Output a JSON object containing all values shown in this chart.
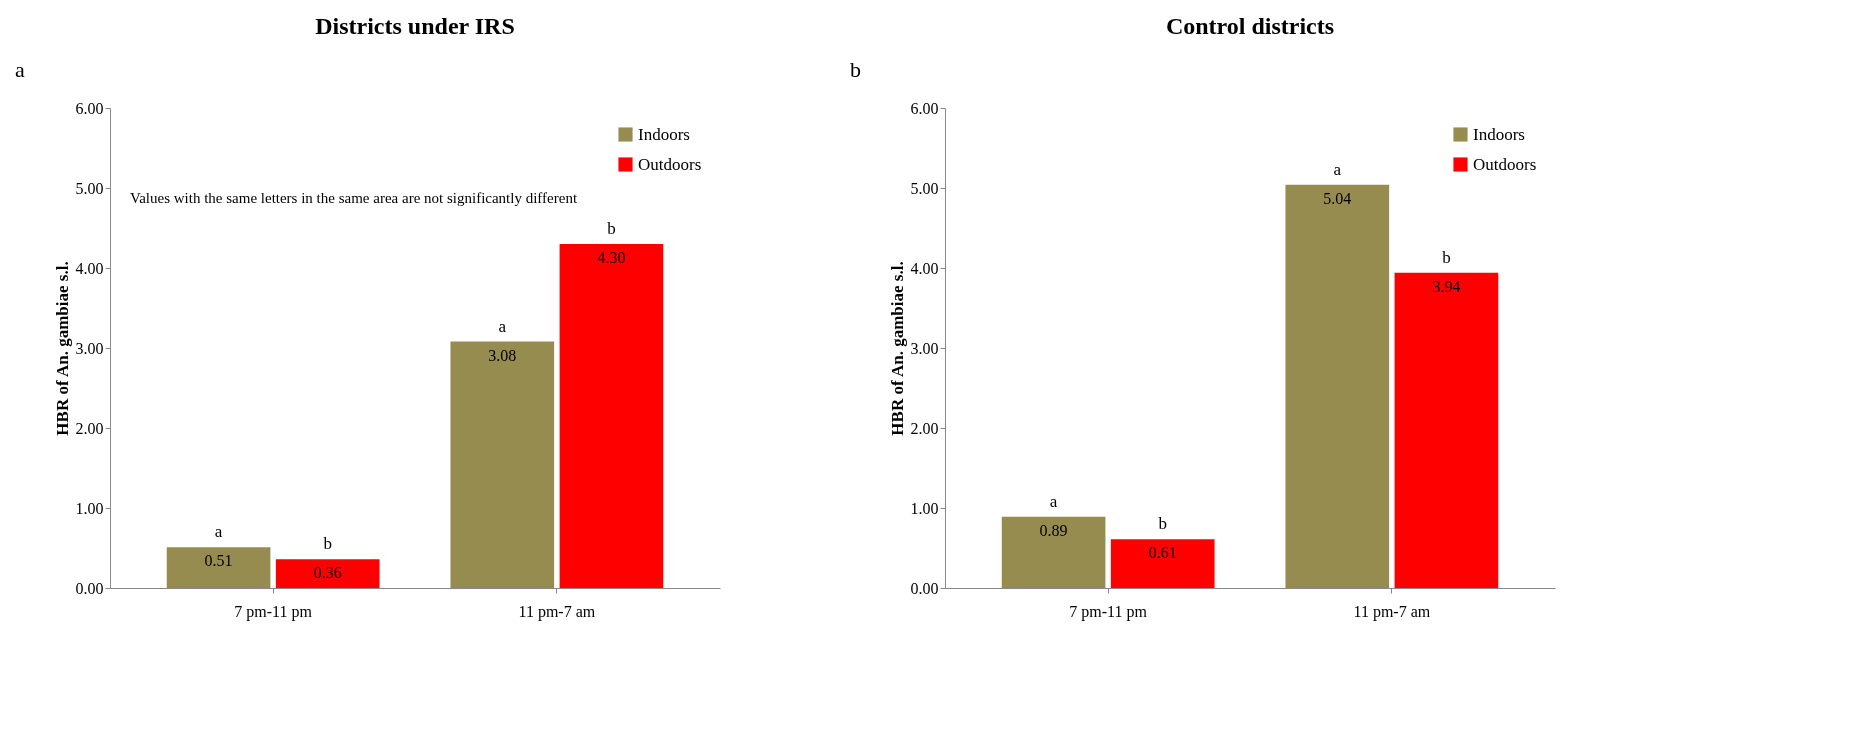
{
  "chart_data": [
    {
      "type": "bar",
      "title": "Districts under IRS",
      "ylabel": "HBR of An. gambiae s.l.",
      "categories": [
        "7 pm-11 pm",
        "11 pm-7 am"
      ],
      "series": [
        {
          "name": "Indoors",
          "color": "#968c50",
          "values": [
            0.51,
            3.08
          ],
          "value_labels": [
            "0.51",
            "3.08"
          ]
        },
        {
          "name": "Outdoors",
          "color": "#ff0000",
          "values": [
            0.36,
            4.3
          ],
          "value_labels": [
            "0.36",
            "4.30"
          ]
        }
      ],
      "ylim": [
        0,
        6
      ],
      "yticks": [
        {
          "value": 0,
          "label": "0.00"
        },
        {
          "value": 1,
          "label": "1.00"
        },
        {
          "value": 2,
          "label": "2.00"
        },
        {
          "value": 3,
          "label": "3.00"
        },
        {
          "value": 4,
          "label": "4.00"
        },
        {
          "value": 5,
          "label": "5.00"
        },
        {
          "value": 6,
          "label": "6.00"
        }
      ],
      "legend": "top right",
      "grid": false,
      "annotations": [
        "a",
        "Values with the same letters in the same area are not significantly different",
        "a",
        "b",
        "a",
        "b"
      ]
    },
    {
      "type": "bar",
      "title": "Control districts",
      "ylabel": "HBR of An. gambiae s.l.",
      "categories": [
        "7 pm-11 pm",
        "11 pm-7 am"
      ],
      "series": [
        {
          "name": "Indoors",
          "color": "#968c50",
          "values": [
            0.89,
            5.04
          ],
          "value_labels": [
            "0.89",
            "5.04"
          ]
        },
        {
          "name": "Outdoors",
          "color": "#ff0000",
          "values": [
            0.61,
            3.94
          ],
          "value_labels": [
            "0.61",
            "3.94"
          ]
        }
      ],
      "ylim": [
        0,
        6
      ],
      "yticks": [
        {
          "value": 0,
          "label": "0.00"
        },
        {
          "value": 1,
          "label": "1.00"
        },
        {
          "value": 2,
          "label": "2.00"
        },
        {
          "value": 3,
          "label": "3.00"
        },
        {
          "value": 4,
          "label": "4.00"
        },
        {
          "value": 5,
          "label": "5.00"
        },
        {
          "value": 6,
          "label": "6.00"
        }
      ],
      "legend": "top right",
      "grid": false,
      "annotations": [
        "b",
        "a",
        "b",
        "a",
        "b"
      ]
    }
  ]
}
